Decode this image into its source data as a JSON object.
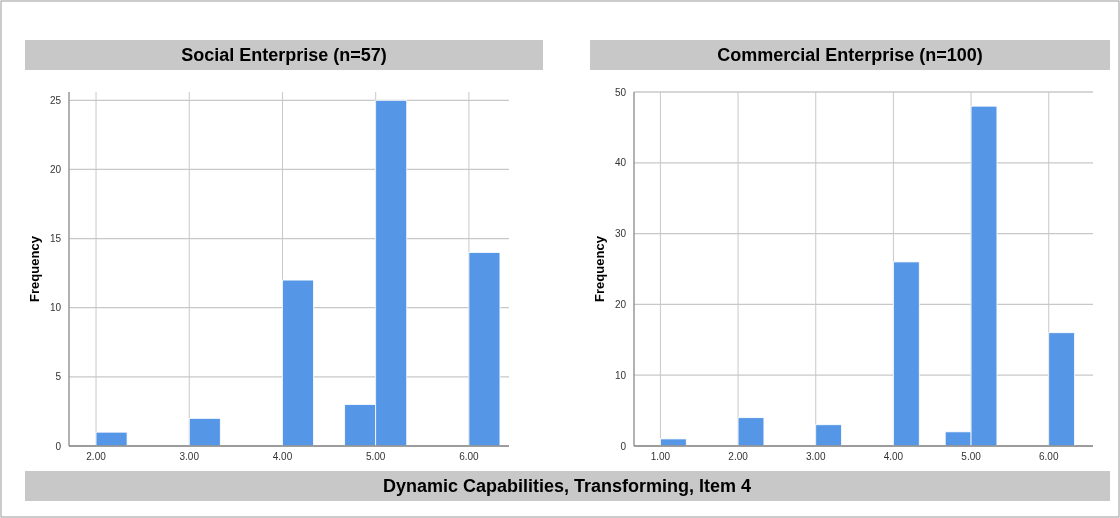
{
  "chart_data": [
    {
      "type": "histogram",
      "title": "Social Enterprise (n=57)",
      "ylabel": "Frequency",
      "bins": [
        2,
        2.333,
        2.667,
        3,
        3.333,
        3.667,
        4,
        4.333,
        4.667,
        5,
        5.333,
        5.667,
        6,
        6.333
      ],
      "values": [
        1,
        0,
        0,
        2,
        0,
        0,
        12,
        0,
        3,
        25,
        0,
        0,
        14
      ],
      "color": "#5596e6",
      "xlim": [
        1.71,
        6.43
      ],
      "xticks": [
        {
          "value": 2,
          "label": "2.00"
        },
        {
          "value": 3,
          "label": "3.00"
        },
        {
          "value": 4,
          "label": "4.00"
        },
        {
          "value": 5,
          "label": "5.00"
        },
        {
          "value": 6,
          "label": "6.00"
        }
      ],
      "ylim": [
        0,
        25.6
      ],
      "yticks": [
        0,
        5,
        10,
        15,
        20,
        25
      ],
      "grid": true,
      "annotations": [
        "Dynamic Capabilities, Transforming, Item 4"
      ]
    },
    {
      "type": "histogram",
      "title": "Commercial Enterprise (n=100)",
      "ylabel": "Frequency",
      "bins": [
        1,
        1.333,
        1.667,
        2,
        2.333,
        2.667,
        3,
        3.333,
        3.667,
        4,
        4.333,
        4.667,
        5,
        5.333,
        5.667,
        6,
        6.333
      ],
      "values": [
        1,
        0,
        0,
        4,
        0,
        0,
        3,
        0,
        0,
        26,
        0,
        2,
        48,
        0,
        0,
        16
      ],
      "color": "#5596e6",
      "xlim": [
        0.66,
        6.57
      ],
      "xticks": [
        {
          "value": 1,
          "label": "1.00"
        },
        {
          "value": 2,
          "label": "2.00"
        },
        {
          "value": 3,
          "label": "3.00"
        },
        {
          "value": 4,
          "label": "4.00"
        },
        {
          "value": 5,
          "label": "5.00"
        },
        {
          "value": 6,
          "label": "6.00"
        }
      ],
      "ylim": [
        0,
        50
      ],
      "yticks": [
        0,
        10,
        20,
        30,
        40,
        50
      ],
      "grid": true
    }
  ]
}
